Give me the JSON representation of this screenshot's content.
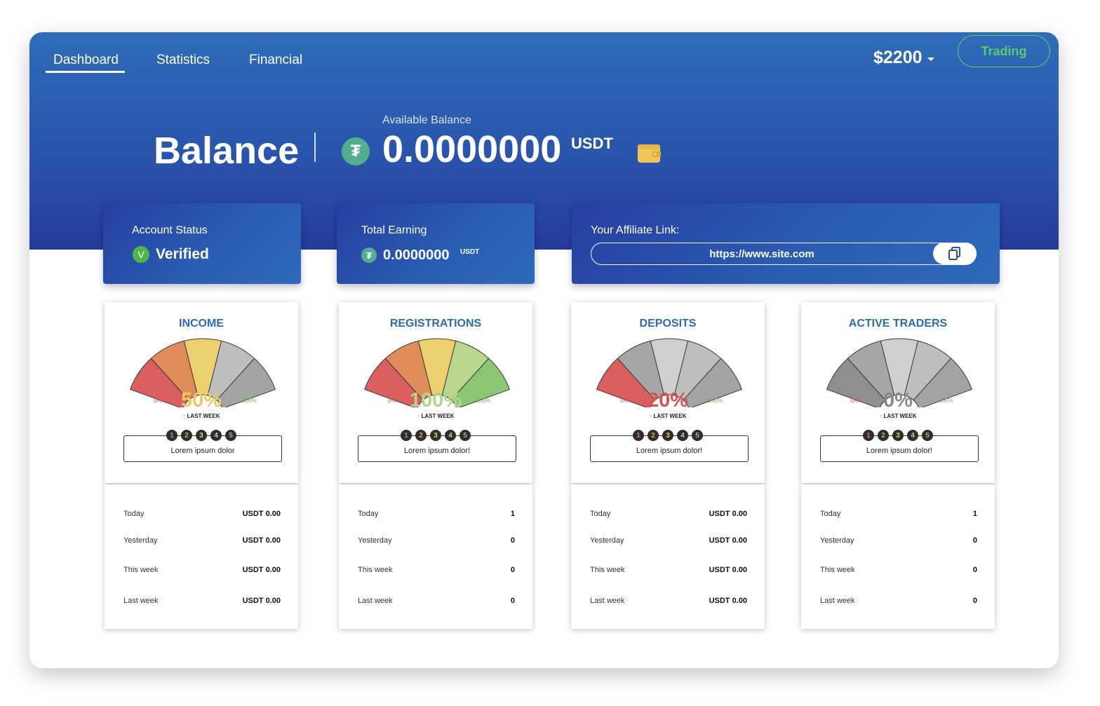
{
  "nav": {
    "items": [
      "Dashboard",
      "Statistics",
      "Financial"
    ],
    "active": "Dashboard"
  },
  "header": {
    "amount": "$2200",
    "trading_label": "Trading"
  },
  "balance": {
    "title": "Balance",
    "available_label": "Available Balance",
    "available_value": "0.0000000",
    "unit": "USDT",
    "coin_glyph": "₮"
  },
  "cards": {
    "account_status_label": "Account Status",
    "account_status_value": "Verified",
    "verified_badge": "V",
    "total_earning_label": "Total Earning",
    "total_earning_value": "0.0000000",
    "total_earning_unit": "USDT",
    "affiliate_label": "Your Affiliate Link:",
    "affiliate_link": "https://www.site.com"
  },
  "gauges": [
    {
      "title": "INCOME",
      "percent_label": "50%",
      "percent": 50,
      "min_label": "0%",
      "max_label": "100%",
      "last_week_label": "LAST WEEK",
      "steps": [
        "1",
        "2",
        "3",
        "4",
        "5"
      ],
      "note": "Lorem ipsum dolor",
      "stats": [
        {
          "label": "Today",
          "value": "USDT 0.00"
        },
        {
          "label": "Yesterday",
          "value": "USDT 0.00"
        },
        {
          "label": "This week",
          "value": "USDT 0.00"
        },
        {
          "label": "Last week",
          "value": "USDT 0.00"
        }
      ]
    },
    {
      "title": "REGISTRATIONS",
      "percent_label": "100%",
      "percent": 100,
      "min_label": "0%",
      "max_label": "100%",
      "last_week_label": "LAST WEEK",
      "steps": [
        "1",
        "2",
        "3",
        "4",
        "5"
      ],
      "note": "Lorem ipsum dolor!",
      "stats": [
        {
          "label": "Today",
          "value": "1"
        },
        {
          "label": "Yesterday",
          "value": "0"
        },
        {
          "label": "This week",
          "value": "0"
        },
        {
          "label": "Last week",
          "value": "0"
        }
      ]
    },
    {
      "title": "DEPOSITS",
      "percent_label": "20%",
      "percent": 20,
      "min_label": "0%",
      "max_label": "100%",
      "last_week_label": "LAST WEEK",
      "steps": [
        "1",
        "2",
        "3",
        "4",
        "5"
      ],
      "note": "Lorem ipsum dolor!",
      "stats": [
        {
          "label": "Today",
          "value": "USDT 0.00"
        },
        {
          "label": "Yesterday",
          "value": "USDT 0.00"
        },
        {
          "label": "This week",
          "value": "USDT 0.00"
        },
        {
          "label": "Last week",
          "value": "USDT 0.00"
        }
      ]
    },
    {
      "title": "ACTIVE TRADERS",
      "percent_label": "0%",
      "percent": 0,
      "min_label": "0%",
      "max_label": "100%",
      "last_week_label": "LAST WEEK",
      "steps": [
        "1",
        "2",
        "3",
        "4",
        "5"
      ],
      "note": "Lorem ipsum dolor!",
      "stats": [
        {
          "label": "Today",
          "value": "1"
        },
        {
          "label": "Yesterday",
          "value": "0"
        },
        {
          "label": "This week",
          "value": "0"
        },
        {
          "label": "Last week",
          "value": "0"
        }
      ]
    }
  ],
  "colors": {
    "segment_active": [
      "#db5f5f",
      "#e08c58",
      "#ecd06e",
      "#b8d78c",
      "#8bc673"
    ],
    "segment_inactive": [
      "#8f8f8f",
      "#a6a6a6",
      "#cfcfcf",
      "#bebebe",
      "#a3a3a3"
    ],
    "percent": [
      "#ecc863",
      "#b4d68a",
      "#d9534f",
      "#8a8a8a"
    ],
    "step_dot_text": [
      "#e27a6a",
      "#e8a15c",
      "#e8cf63",
      "#b8d78c",
      "#8bc673"
    ],
    "accent": "#2a6bb8",
    "trading": "#5cc96b"
  },
  "icons": {
    "wallet": "wallet-icon",
    "copy": "copy-icon",
    "coin": "tether-coin-icon",
    "caret": "caret-down-icon",
    "arrow": "arrow-up-icon"
  }
}
